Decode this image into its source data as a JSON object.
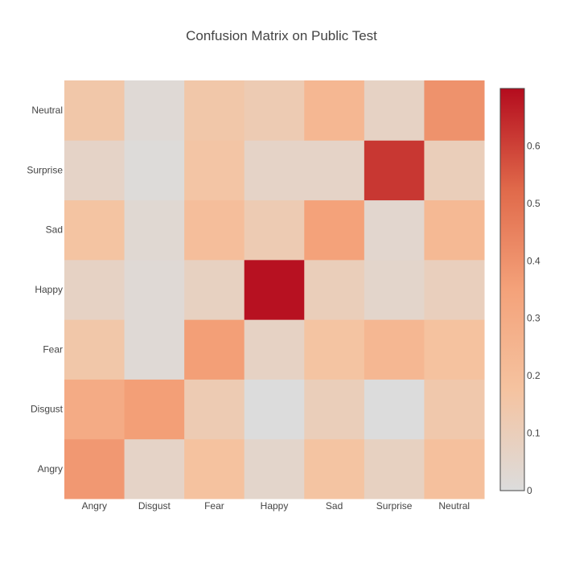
{
  "chart_data": {
    "type": "heatmap",
    "title": "Confusion Matrix on Public Test",
    "xlabel": "",
    "ylabel": "",
    "x_categories": [
      "Angry",
      "Disgust",
      "Fear",
      "Happy",
      "Sad",
      "Surprise",
      "Neutral"
    ],
    "y_categories": [
      "Angry",
      "Disgust",
      "Fear",
      "Happy",
      "Sad",
      "Surprise",
      "Neutral"
    ],
    "values": [
      [
        0.38,
        0.06,
        0.18,
        0.05,
        0.17,
        0.08,
        0.19
      ],
      [
        0.3,
        0.36,
        0.12,
        0.0,
        0.1,
        0.0,
        0.14
      ],
      [
        0.15,
        0.02,
        0.36,
        0.07,
        0.17,
        0.24,
        0.18
      ],
      [
        0.07,
        0.02,
        0.08,
        0.69,
        0.1,
        0.05,
        0.09
      ],
      [
        0.17,
        0.03,
        0.2,
        0.12,
        0.35,
        0.04,
        0.23
      ],
      [
        0.06,
        0.01,
        0.16,
        0.06,
        0.06,
        0.62,
        0.1
      ],
      [
        0.15,
        0.02,
        0.15,
        0.12,
        0.24,
        0.07,
        0.4
      ]
    ],
    "zlim": [
      0,
      0.7
    ],
    "colorbar_ticks": [
      "0",
      "0.1",
      "0.2",
      "0.3",
      "0.4",
      "0.5",
      "0.6"
    ],
    "colorscale": [
      "#dcdcdc",
      "#f5c3a0",
      "#f4a27a",
      "#e0694a",
      "#b40c1e"
    ]
  }
}
